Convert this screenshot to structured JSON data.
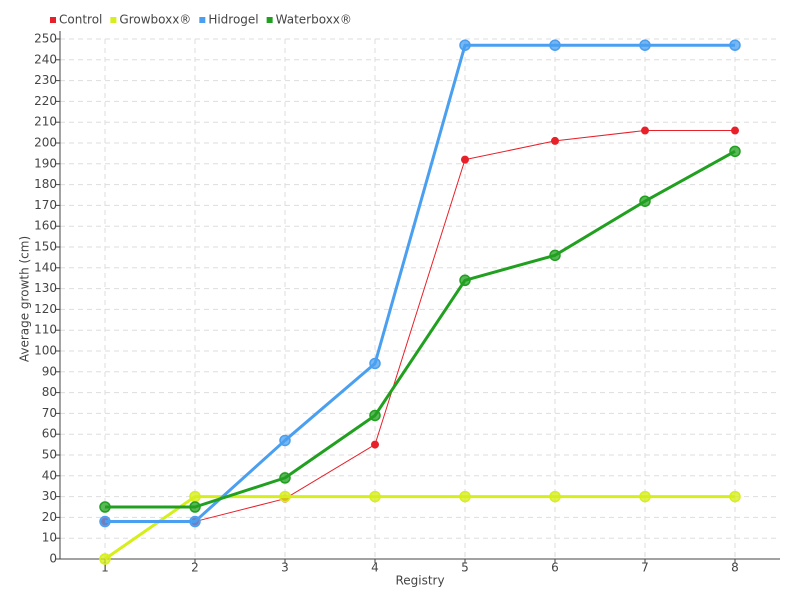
{
  "chart_data": {
    "type": "line",
    "x_label": "Registry",
    "y_label": "Average growth (cm)",
    "categories": [
      "1",
      "2",
      "3",
      "4",
      "5",
      "6",
      "7",
      "8"
    ],
    "series": [
      {
        "name": "Control",
        "color": "#e8202a",
        "line_width": 1,
        "values": [
          18,
          18,
          29,
          55,
          192,
          201,
          206,
          206
        ]
      },
      {
        "name": "Growboxx®",
        "color": "#d6ee1a",
        "line_width": 3,
        "values": [
          0,
          30,
          30,
          30,
          30,
          30,
          30,
          30
        ]
      },
      {
        "name": "Hidrogel",
        "color": "#4a9ff0",
        "line_width": 3,
        "values": [
          18,
          18,
          57,
          94,
          247,
          247,
          247,
          247
        ]
      },
      {
        "name": "Waterboxx®",
        "color": "#21a020",
        "line_width": 3,
        "values": [
          25,
          25,
          39,
          69,
          134,
          146,
          172,
          196
        ]
      }
    ],
    "ylim": [
      0,
      250
    ],
    "yticks": [
      0,
      10,
      20,
      30,
      40,
      50,
      60,
      70,
      80,
      90,
      100,
      110,
      120,
      130,
      140,
      150,
      160,
      170,
      180,
      190,
      200,
      210,
      220,
      230,
      240,
      250
    ],
    "grid": true,
    "legend": "top-left"
  }
}
